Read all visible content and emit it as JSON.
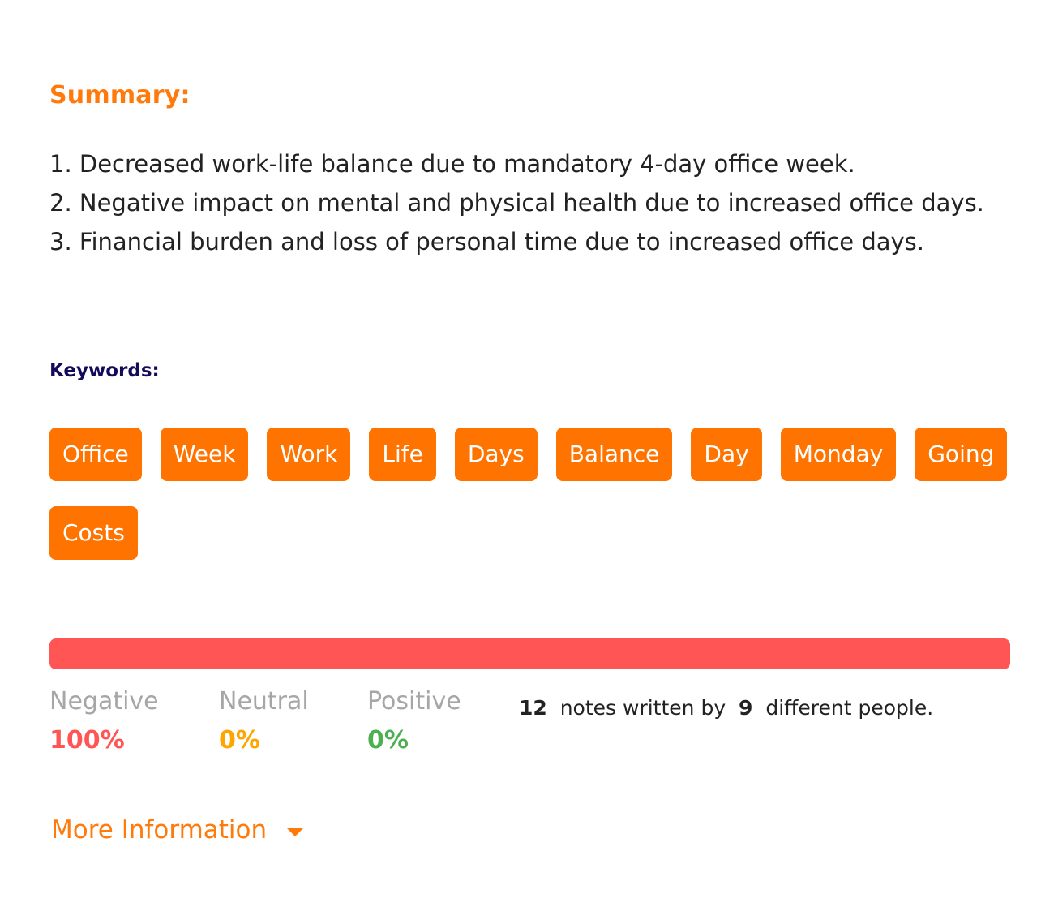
{
  "summary": {
    "title": "Summary:",
    "items": [
      "1. Decreased work-life balance due to mandatory 4-day office week.",
      "2. Negative impact on mental and physical health due to increased office days.",
      "3. Financial burden and loss of personal time due to increased office days."
    ]
  },
  "keywords": {
    "title": "Keywords:",
    "items": [
      "Office",
      "Week",
      "Work",
      "Life",
      "Days",
      "Balance",
      "Day",
      "Monday",
      "Going",
      "Costs"
    ]
  },
  "sentiment": {
    "fractions": {
      "negative": 1.0,
      "neutral": 0.0,
      "positive": 0.0
    },
    "colors": {
      "negative": "#ff5555",
      "neutral": "#ffa500",
      "positive": "#4caf50"
    },
    "negative": {
      "label": "Negative",
      "value": "100%"
    },
    "neutral": {
      "label": "Neutral",
      "value": "0%"
    },
    "positive": {
      "label": "Positive",
      "value": "0%"
    }
  },
  "notes": {
    "count": "12",
    "text_a": "notes written by",
    "people": "9",
    "text_b": "different people."
  },
  "more_info": {
    "label": "More Information",
    "icon": "caret-down-icon"
  },
  "colors": {
    "accent": "#ff7300",
    "keywords_title": "#140a5a"
  }
}
